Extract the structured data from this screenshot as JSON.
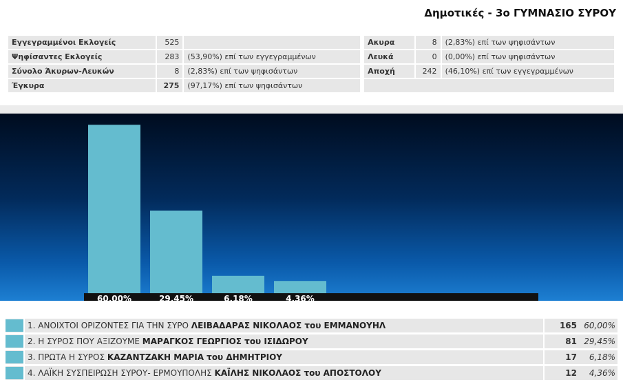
{
  "page": {
    "title": "Δημοτικές - 3ο ΓΥΜΝΑΣΙΟ ΣΥΡΟΥ"
  },
  "stats": {
    "left": [
      {
        "label": "Εγγεγραμμένοι Εκλογείς",
        "value": "525",
        "note": ""
      },
      {
        "label": "Ψηφίσαντες Εκλογείς",
        "value": "283",
        "note": "(53,90%) επί των εγγεγραμμένων"
      },
      {
        "label": "Σύνολο Άκυρων-Λευκών",
        "value": "8",
        "note": "(2,83%) επί των ψηφισάντων"
      },
      {
        "label": "Έγκυρα",
        "value": "275",
        "note": "(97,17%) επί των ψηφισάντων"
      }
    ],
    "right": [
      {
        "label": "Ακυρα",
        "value": "8",
        "note": "(2,83%) επί των ψηφισάντων"
      },
      {
        "label": "Λευκά",
        "value": "0",
        "note": "(0,00%) επί των ψηφισάντων"
      },
      {
        "label": "Αποχή",
        "value": "242",
        "note": "(46,10%) επί των εγγεγραμμένων"
      }
    ]
  },
  "colors": {
    "bar": "#64bccf",
    "label_strip": "#111111"
  },
  "chart_data": {
    "type": "bar",
    "categories": [
      "1",
      "2",
      "3",
      "4"
    ],
    "values": [
      60.0,
      29.45,
      6.18,
      4.36
    ],
    "value_labels": [
      "60,00%",
      "29,45%",
      "6,18%",
      "4,36%"
    ],
    "ylim": [
      0,
      64
    ],
    "grid": false,
    "legend": "none"
  },
  "results": [
    {
      "prefix": "1. ΑΝΟΙΧΤΟΙ ΟΡΙΖΟΝΤΕΣ ΓΙΑ ΤΗΝ ΣΥΡΟ",
      "candidate": "ΛΕΙΒΑΔΑΡΑΣ ΝΙΚΟΛΑΟΣ του ΕΜΜΑΝΟΥΗΛ",
      "votes": "165",
      "pct": "60,00%"
    },
    {
      "prefix": "2. Η ΣΥΡΟΣ ΠΟΥ ΑΞΙΖΟΥΜΕ",
      "candidate": "ΜΑΡΑΓΚΟΣ ΓΕΩΡΓΙΟΣ του ΙΣΙΔΩΡΟΥ",
      "votes": "81",
      "pct": "29,45%"
    },
    {
      "prefix": "3. ΠΡΩΤΑ Η ΣΥΡΟΣ",
      "candidate": "ΚΑΖΑΝΤΖΑΚΗ ΜΑΡΙΑ του ΔΗΜΗΤΡΙΟΥ",
      "votes": "17",
      "pct": "6,18%"
    },
    {
      "prefix": "4. ΛΑΪΚΗ ΣΥΣΠΕΙΡΩΣΗ ΣΥΡΟΥ- ΕΡΜΟΥΠΟΛΗΣ",
      "candidate": "ΚΑΪΛΗΣ ΝΙΚΟΛΑΟΣ του ΑΠΟΣΤΟΛΟΥ",
      "votes": "12",
      "pct": "4,36%"
    }
  ]
}
